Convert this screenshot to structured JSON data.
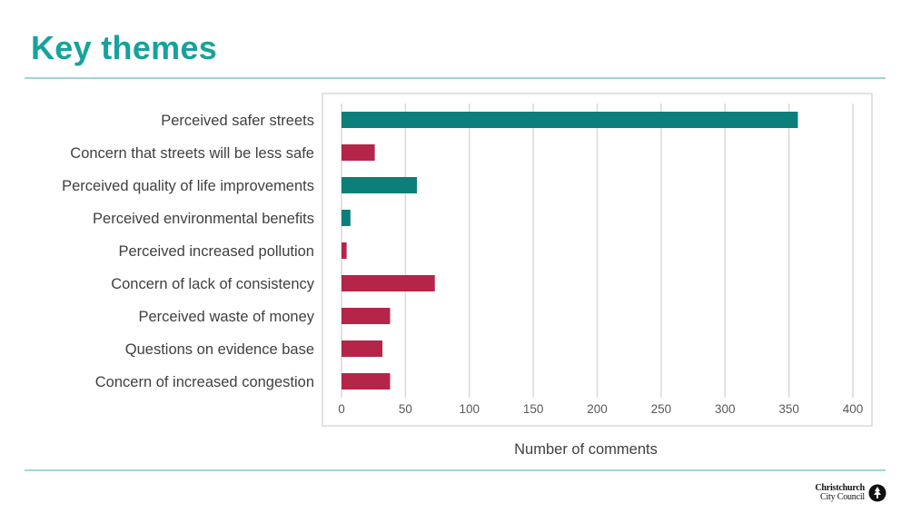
{
  "slide": {
    "title": "Key themes",
    "logo_line1": "Christchurch",
    "logo_line2": "City Council"
  },
  "colors": {
    "title": "#17a29c",
    "rule": "#9fd8d3",
    "positive": "#0d7f7b",
    "negative": "#b5254a",
    "gridline": "#d9d9d9",
    "plot_border": "#d9d9d9"
  },
  "chart_data": {
    "type": "bar",
    "orientation": "horizontal",
    "title": "",
    "xlabel": "Number of comments",
    "ylabel": "",
    "xlim": [
      0,
      400
    ],
    "xticks": [
      0,
      50,
      100,
      150,
      200,
      250,
      300,
      350,
      400
    ],
    "grid": true,
    "legend": "none",
    "categories": [
      "Perceived safer streets",
      "Concern that streets will be less safe",
      "Perceived quality of life improvements",
      "Perceived environmental benefits",
      "Perceived increased pollution",
      "Concern of lack of consistency",
      "Perceived waste of money",
      "Questions on evidence base",
      "Concern of increased congestion"
    ],
    "values": [
      357,
      26,
      59,
      7,
      4,
      73,
      38,
      32,
      38
    ],
    "bar_colors": [
      "#0d7f7b",
      "#b5254a",
      "#0d7f7b",
      "#0d7f7b",
      "#b5254a",
      "#b5254a",
      "#b5254a",
      "#b5254a",
      "#b5254a"
    ]
  }
}
